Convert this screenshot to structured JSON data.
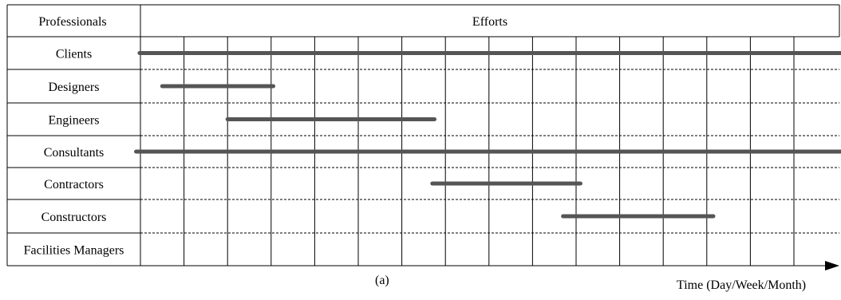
{
  "header": {
    "professionals_label": "Professionals",
    "efforts_label": "Efforts"
  },
  "rows": [
    {
      "label": "Clients",
      "bar": [
        -0.02,
        16.1
      ]
    },
    {
      "label": "Designers",
      "bar": [
        0.5,
        3.05
      ]
    },
    {
      "label": "Engineers",
      "bar": [
        2.0,
        6.75
      ]
    },
    {
      "label": "Consultants",
      "bar": [
        -0.1,
        16.1
      ]
    },
    {
      "label": "Contractors",
      "bar": [
        6.7,
        10.1
      ]
    },
    {
      "label": "Constructors",
      "bar": [
        9.7,
        13.15
      ]
    },
    {
      "label": "Facilities Managers",
      "bar": null
    }
  ],
  "time_intervals": 16,
  "bar_color": "#555555",
  "caption": "(a)",
  "axis_caption": "Time (Day/Week/Month)"
}
